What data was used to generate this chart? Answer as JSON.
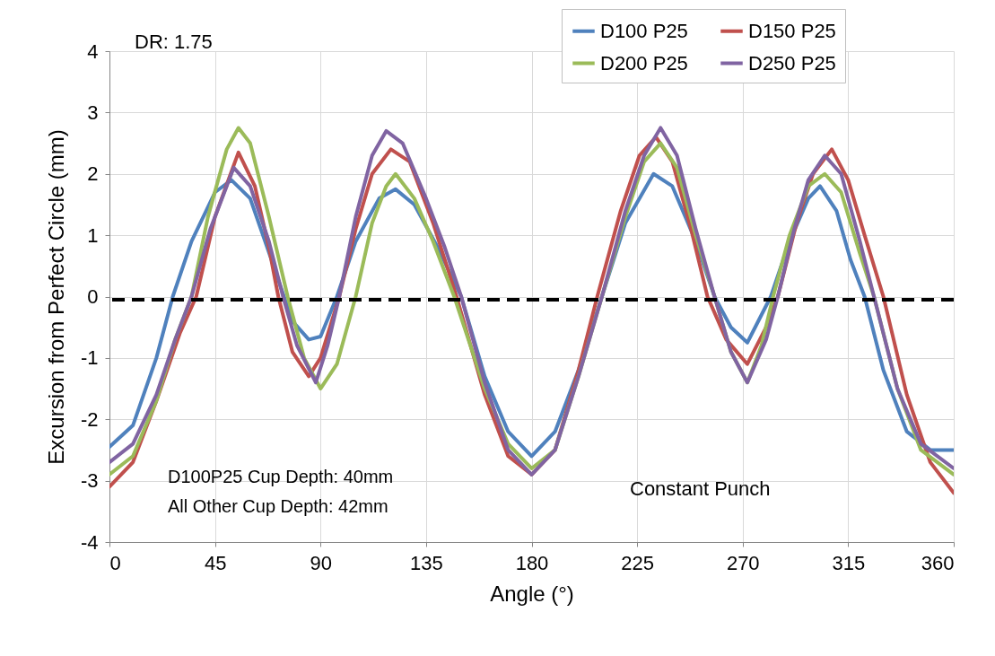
{
  "chart_data": {
    "type": "line",
    "xlabel": "Angle (°)",
    "ylabel": "Excursion from Perfect Circle (mm)",
    "xlim": [
      0,
      360
    ],
    "xticks": [
      0,
      45,
      90,
      135,
      180,
      225,
      270,
      315,
      360
    ],
    "ylim": [
      -4,
      4
    ],
    "yticks": [
      -4,
      -3,
      -2,
      -1,
      0,
      1,
      2,
      3,
      4
    ],
    "grid": true,
    "legend": "top right",
    "line_style": "solid",
    "marker": "none",
    "annotations": [
      "DR: 1.75",
      "D100P25 Cup Depth: 40mm\nAll Other Cup Depth: 42mm",
      "Constant Punch"
    ],
    "ref_lines": [
      {
        "axis": "y",
        "value": -0.05,
        "color": "#000000",
        "line_style": "dashed"
      }
    ],
    "series": [
      {
        "name": "D100 P25",
        "color": "#4f81bd",
        "x": [
          0,
          10,
          20,
          27,
          35,
          45,
          52,
          60,
          70,
          78,
          85,
          90,
          97,
          105,
          115,
          122,
          130,
          140,
          150,
          160,
          170,
          180,
          190,
          200,
          210,
          220,
          232,
          240,
          250,
          258,
          265,
          272,
          282,
          290,
          298,
          303,
          310,
          316,
          322,
          330,
          340,
          350,
          360
        ],
        "values": [
          -2.45,
          -2.1,
          -1.0,
          0,
          0.9,
          1.7,
          1.9,
          1.6,
          0.5,
          -0.4,
          -0.7,
          -0.65,
          0,
          0.9,
          1.6,
          1.75,
          1.5,
          0.8,
          0,
          -1.3,
          -2.2,
          -2.6,
          -2.2,
          -1.2,
          0,
          1.2,
          2.0,
          1.8,
          0.9,
          0,
          -0.5,
          -0.75,
          0,
          0.9,
          1.6,
          1.8,
          1.4,
          0.6,
          0,
          -1.2,
          -2.2,
          -2.5,
          -2.5
        ]
      },
      {
        "name": "D150 P25",
        "color": "#c0504d",
        "x": [
          0,
          10,
          20,
          30,
          37,
          45,
          55,
          62,
          68,
          72,
          78,
          85,
          90,
          98,
          105,
          112,
          120,
          128,
          138,
          148,
          160,
          170,
          180,
          190,
          200,
          208,
          218,
          226,
          233,
          240,
          248,
          255,
          263,
          272,
          280,
          285,
          293,
          300,
          308,
          315,
          322,
          330,
          340,
          350,
          360
        ],
        "values": [
          -3.1,
          -2.7,
          -1.7,
          -0.6,
          0,
          1.3,
          2.35,
          1.8,
          0.8,
          0,
          -0.9,
          -1.3,
          -1.0,
          0,
          1.1,
          2.0,
          2.4,
          2.2,
          1.2,
          0,
          -1.6,
          -2.6,
          -2.9,
          -2.5,
          -1.2,
          0,
          1.4,
          2.3,
          2.6,
          2.2,
          1.1,
          0,
          -0.7,
          -1.1,
          -0.5,
          0,
          1.2,
          2.0,
          2.4,
          1.9,
          1.0,
          0,
          -1.6,
          -2.7,
          -3.2
        ]
      },
      {
        "name": "D200 P25",
        "color": "#9bbb59",
        "x": [
          0,
          10,
          20,
          28,
          35,
          42,
          50,
          55,
          60,
          68,
          76,
          83,
          90,
          97,
          105,
          112,
          118,
          122,
          130,
          138,
          147,
          160,
          170,
          180,
          190,
          200,
          210,
          220,
          228,
          235,
          242,
          250,
          258,
          265,
          272,
          278,
          283,
          290,
          298,
          305,
          312,
          320,
          326,
          336,
          346,
          360
        ],
        "values": [
          -2.9,
          -2.6,
          -1.7,
          -0.7,
          0,
          1.3,
          2.4,
          2.75,
          2.5,
          1.3,
          0,
          -1.0,
          -1.5,
          -1.1,
          0,
          1.2,
          1.8,
          2.0,
          1.6,
          0.9,
          0,
          -1.5,
          -2.4,
          -2.8,
          -2.5,
          -1.3,
          0,
          1.3,
          2.2,
          2.5,
          2.1,
          1.0,
          0,
          -0.9,
          -1.4,
          -0.8,
          0,
          1.0,
          1.8,
          2.0,
          1.7,
          0.7,
          0,
          -1.5,
          -2.5,
          -2.9
        ]
      },
      {
        "name": "D250 P25",
        "color": "#8064a2",
        "x": [
          0,
          10,
          20,
          28,
          35,
          43,
          53,
          60,
          68,
          74,
          80,
          88,
          93,
          98,
          105,
          112,
          118,
          125,
          135,
          143,
          150,
          160,
          170,
          180,
          190,
          200,
          210,
          220,
          228,
          235,
          242,
          250,
          258,
          265,
          272,
          280,
          285,
          292,
          298,
          305,
          312,
          320,
          326,
          336,
          346,
          360
        ],
        "values": [
          -2.7,
          -2.4,
          -1.6,
          -0.7,
          0,
          1.1,
          2.1,
          1.8,
          0.9,
          0,
          -0.8,
          -1.4,
          -0.8,
          0,
          1.3,
          2.3,
          2.7,
          2.5,
          1.6,
          0.8,
          0,
          -1.4,
          -2.5,
          -2.9,
          -2.5,
          -1.3,
          0,
          1.4,
          2.3,
          2.75,
          2.3,
          1.1,
          0,
          -0.9,
          -1.4,
          -0.7,
          0,
          1.1,
          1.9,
          2.3,
          2.0,
          0.9,
          0,
          -1.5,
          -2.4,
          -2.8
        ]
      }
    ]
  }
}
